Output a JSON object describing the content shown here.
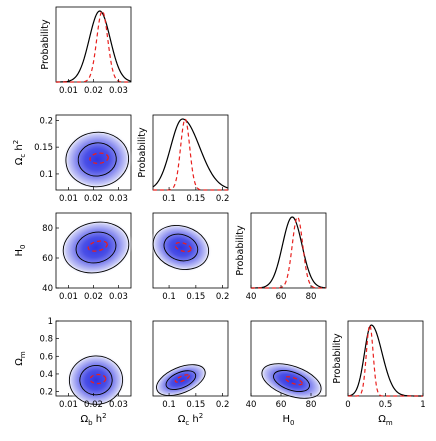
{
  "figure": {
    "colors": {
      "density_fill": "#3b40e6",
      "contour_line": "#000000",
      "marginal_line": "#000000",
      "mle_line": "#e8201e"
    },
    "y_text": "Probability"
  },
  "chart_data": {
    "type": "triangle-corner",
    "parameters": [
      {
        "id": "omega_b",
        "label": "Ωb h2",
        "label_main": "Ω",
        "label_sub": "b",
        "label_rest": " h",
        "label_sup": "2",
        "range": [
          0.005,
          0.035
        ],
        "ticks": [
          0.01,
          0.02,
          0.03
        ],
        "tick_labels": [
          "0.01",
          "0.02",
          "0.03"
        ]
      },
      {
        "id": "omega_c",
        "label": "Ωc h2",
        "label_main": "Ω",
        "label_sub": "c",
        "label_rest": " h",
        "label_sup": "2",
        "range": [
          0.07,
          0.21
        ],
        "ticks": [
          0.1,
          0.15,
          0.2
        ],
        "tick_labels": [
          "0.1",
          "0.15",
          "0.2"
        ]
      },
      {
        "id": "H0",
        "label": "H0",
        "label_main": "H",
        "label_sub": "0",
        "label_rest": "",
        "label_sup": "",
        "range": [
          40,
          90
        ],
        "ticks": [
          40,
          60,
          80
        ],
        "tick_labels": [
          "40",
          "60",
          "80"
        ]
      },
      {
        "id": "omega_m",
        "label": "Ωm",
        "label_main": "Ω",
        "label_sub": "m",
        "label_rest": "",
        "label_sup": "",
        "range": [
          0.15,
          1.0
        ],
        "ticks": [
          0.2,
          0.4,
          0.6,
          0.8,
          1.0
        ],
        "tick_labels": [
          "0.2",
          "0.4",
          "0.6",
          "0.8",
          "1"
        ]
      }
    ],
    "diag_x_ticks": {
      "omega_m": {
        "ticks": [
          0,
          0.5,
          1.0
        ],
        "tick_labels": [
          "0",
          "0.5",
          "1"
        ],
        "range": [
          0,
          1.0
        ]
      }
    },
    "marginals": [
      {
        "param": "omega_b",
        "posterior": {
          "mean": 0.0225,
          "sd": 0.0042,
          "skew": 0
        },
        "likelihood": {
          "mean": 0.0235,
          "sd": 0.0022
        }
      },
      {
        "param": "omega_c",
        "posterior": {
          "mean": 0.125,
          "sd": 0.022,
          "skew": 0.45
        },
        "likelihood": {
          "mean": 0.13,
          "sd": 0.0085
        }
      },
      {
        "param": "H0",
        "posterior": {
          "mean": 67.5,
          "sd": 6.5,
          "skew": 0
        },
        "likelihood": {
          "mean": 71,
          "sd": 3.5
        }
      },
      {
        "param": "omega_m",
        "posterior": {
          "mean": 0.31,
          "sd": 0.09,
          "skew": 0.6
        },
        "likelihood": {
          "mean": 0.29,
          "sd": 0.045
        }
      }
    ],
    "joints": [
      {
        "x": "omega_b",
        "y": "omega_c",
        "cx": 0.0215,
        "cy": 0.127,
        "sx": 0.0058,
        "sy": 0.022,
        "rho": 0.15
      },
      {
        "x": "omega_b",
        "y": "H0",
        "cx": 0.021,
        "cy": 67,
        "sx": 0.0056,
        "sy": 8,
        "rho": 0.3
      },
      {
        "x": "omega_c",
        "y": "H0",
        "cx": 0.122,
        "cy": 67,
        "sx": 0.019,
        "sy": 8,
        "rho": -0.3
      },
      {
        "x": "omega_b",
        "y": "omega_m",
        "cx": 0.021,
        "cy": 0.33,
        "sx": 0.006,
        "sy": 0.07,
        "rho": 0.1
      },
      {
        "x": "omega_c",
        "y": "omega_m",
        "cx": 0.122,
        "cy": 0.33,
        "sx": 0.019,
        "sy": 0.075,
        "rho": 0.72
      },
      {
        "x": "H0",
        "y": "omega_m",
        "cx": 67,
        "cy": 0.32,
        "sx": 8.5,
        "sy": 0.075,
        "rho": -0.75
      }
    ],
    "contour_levels_sigma": [
      1.52,
      2.5
    ],
    "xlabel": "",
    "ylabel": "",
    "title": "",
    "grid": false,
    "legend": "none"
  }
}
